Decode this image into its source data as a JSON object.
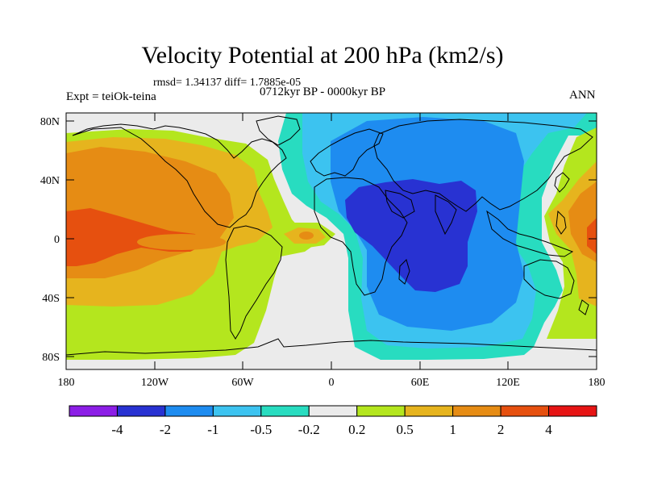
{
  "title": "Velocity Potential at 200 hPa (km2/s)",
  "stats": "rmsd= 1.34137 diff= 1.7885e-05",
  "experiment": "Expt = teiOk-teina",
  "period": "0712kyr BP - 0000kyr BP",
  "season": "ANN",
  "lat_labels": [
    "80N",
    "40N",
    "0",
    "40S",
    "80S"
  ],
  "lon_labels": [
    "180",
    "120W",
    "60W",
    "0",
    "60E",
    "120E",
    "180"
  ],
  "colorbar": {
    "colors": [
      "#8c1ee6",
      "#2832d2",
      "#1e8cf0",
      "#3cc3f0",
      "#28dcc0",
      "#ebebeb",
      "#b4e61e",
      "#e6b41e",
      "#e68c14",
      "#e6500f",
      "#e61414"
    ],
    "labels": [
      "-4",
      "-2",
      "-1",
      "-0.5",
      "-0.2",
      "0.2",
      "0.5",
      "1",
      "2",
      "4"
    ]
  }
}
